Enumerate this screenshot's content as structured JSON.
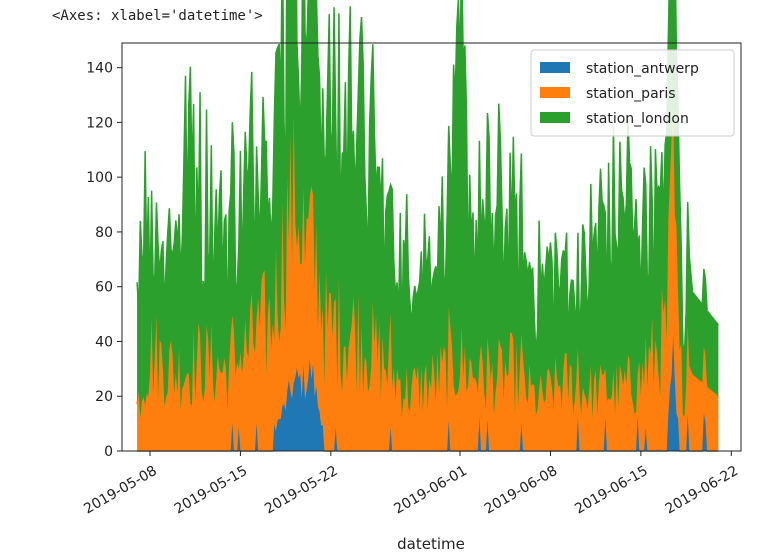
{
  "axes_repr": "<Axes: xlabel='datetime'>",
  "chart_data": {
    "type": "area",
    "stacked": true,
    "xlabel": "datetime",
    "ylabel": "",
    "x_start": "2019-05-07",
    "x_end": "2019-06-21",
    "xlim": [
      "2019-05-05T20:00",
      "2019-06-22T18:00"
    ],
    "ylim": [
      0,
      149
    ],
    "yticks": [
      0,
      20,
      40,
      60,
      80,
      100,
      120,
      140
    ],
    "xticks": [
      "2019-05-08",
      "2019-05-15",
      "2019-05-22",
      "2019-06-01",
      "2019-06-08",
      "2019-06-15",
      "2019-06-22"
    ],
    "grid": false,
    "legend_position": "top-right",
    "colors": {
      "station_antwerp": "#1f77b4",
      "station_paris": "#ff7f0e",
      "station_london": "#2ca02c"
    },
    "series": [
      {
        "name": "station_antwerp",
        "keypoints": [
          [
            "2019-05-07",
            0
          ],
          [
            "2019-05-08",
            0
          ],
          [
            "2019-05-09",
            6
          ],
          [
            "2019-05-10",
            4
          ],
          [
            "2019-05-12",
            8
          ],
          [
            "2019-05-14",
            6
          ],
          [
            "2019-05-16",
            4
          ],
          [
            "2019-05-18",
            14
          ],
          [
            "2019-05-19",
            30
          ],
          [
            "2019-05-19T12:00",
            33
          ],
          [
            "2019-05-20",
            32
          ],
          [
            "2019-05-20T12:00",
            38
          ],
          [
            "2019-05-21",
            22
          ],
          [
            "2019-05-22",
            0
          ],
          [
            "2019-05-25",
            4
          ],
          [
            "2019-05-30",
            3
          ],
          [
            "2019-06-05",
            4
          ],
          [
            "2019-06-10",
            3
          ],
          [
            "2019-06-15",
            4
          ],
          [
            "2019-06-17",
            10
          ],
          [
            "2019-06-17T12:00",
            44
          ],
          [
            "2019-06-18",
            4
          ],
          [
            "2019-06-21",
            0
          ]
        ]
      },
      {
        "name": "station_paris",
        "keypoints": [
          [
            "2019-05-07",
            22
          ],
          [
            "2019-05-08",
            50
          ],
          [
            "2019-05-10",
            40
          ],
          [
            "2019-05-12",
            45
          ],
          [
            "2019-05-14",
            40
          ],
          [
            "2019-05-16",
            55
          ],
          [
            "2019-05-18",
            70
          ],
          [
            "2019-05-19",
            95
          ],
          [
            "2019-05-20",
            70
          ],
          [
            "2019-05-22",
            60
          ],
          [
            "2019-05-24",
            60
          ],
          [
            "2019-05-26",
            45
          ],
          [
            "2019-05-28",
            30
          ],
          [
            "2019-05-30",
            35
          ],
          [
            "2019-06-01",
            45
          ],
          [
            "2019-06-03",
            35
          ],
          [
            "2019-06-05",
            40
          ],
          [
            "2019-06-07",
            25
          ],
          [
            "2019-06-09",
            35
          ],
          [
            "2019-06-11",
            30
          ],
          [
            "2019-06-13",
            30
          ],
          [
            "2019-06-15",
            35
          ],
          [
            "2019-06-17",
            60
          ],
          [
            "2019-06-17T12:00",
            95
          ],
          [
            "2019-06-18",
            40
          ],
          [
            "2019-06-19",
            28
          ],
          [
            "2019-06-21",
            20
          ]
        ]
      },
      {
        "name": "station_london",
        "keypoints": [
          [
            "2019-05-07",
            62
          ],
          [
            "2019-05-07T06:00",
            95
          ],
          [
            "2019-05-07T12:00",
            110
          ],
          [
            "2019-05-08",
            62
          ],
          [
            "2019-05-10",
            70
          ],
          [
            "2019-05-11",
            122
          ],
          [
            "2019-05-12",
            80
          ],
          [
            "2019-05-14",
            70
          ],
          [
            "2019-05-16",
            80
          ],
          [
            "2019-05-18",
            110
          ],
          [
            "2019-05-19",
            143
          ],
          [
            "2019-05-20",
            120
          ],
          [
            "2019-05-21",
            132
          ],
          [
            "2019-05-22",
            95
          ],
          [
            "2019-05-24",
            130
          ],
          [
            "2019-05-26",
            75
          ],
          [
            "2019-05-28",
            60
          ],
          [
            "2019-05-31",
            70
          ],
          [
            "2019-06-01",
            143
          ],
          [
            "2019-06-02",
            75
          ],
          [
            "2019-06-04",
            80
          ],
          [
            "2019-06-06",
            60
          ],
          [
            "2019-06-08",
            55
          ],
          [
            "2019-06-10",
            50
          ],
          [
            "2019-06-12",
            80
          ],
          [
            "2019-06-14",
            90
          ],
          [
            "2019-06-16",
            70
          ],
          [
            "2019-06-17",
            75
          ],
          [
            "2019-06-17T12:00",
            115
          ],
          [
            "2019-06-18",
            70
          ],
          [
            "2019-06-19",
            30
          ],
          [
            "2019-06-21",
            26
          ]
        ]
      }
    ]
  }
}
